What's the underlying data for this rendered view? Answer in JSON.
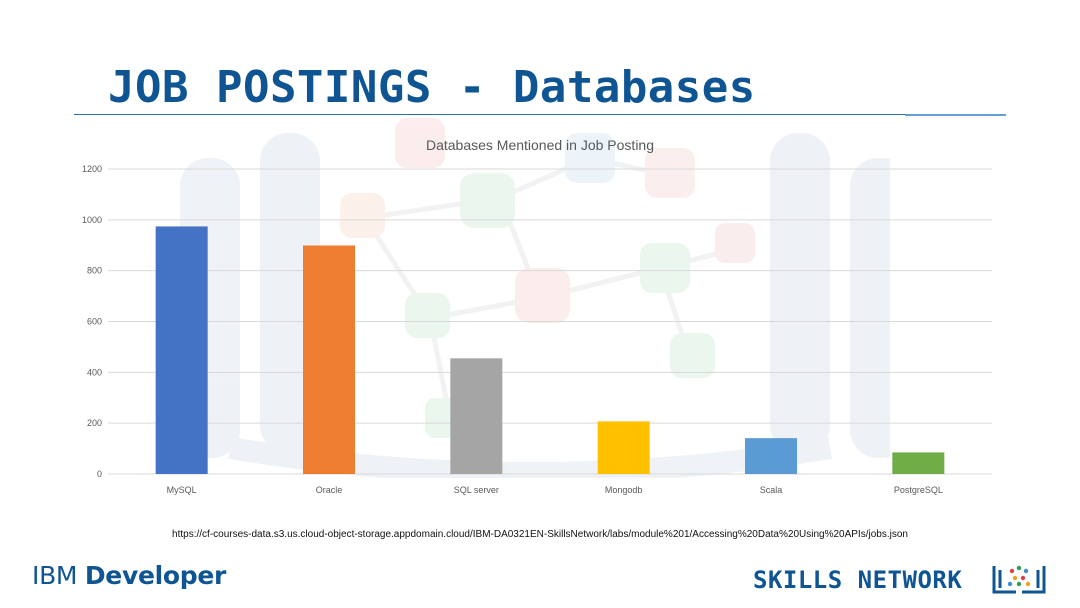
{
  "slide": {
    "title": "JOB POSTINGS - Databases",
    "source_url": "https://cf-courses-data.s3.us.cloud-object-storage.appdomain.cloud/IBM-DA0321EN-SkillsNetwork/labs/module%201/Accessing%20Data%20Using%20APIs/jobs.json"
  },
  "branding": {
    "ibm_prefix": "IBM ",
    "ibm_suffix": "Developer",
    "skills_network": "SKILLS NETWORK"
  },
  "colors": {
    "title": "#0f5493",
    "rule": "#2f6da6",
    "gridline": "#d9d9d9",
    "axis_text": "#595959"
  },
  "chart_data": {
    "type": "bar",
    "title": "Databases Mentioned in Job Posting",
    "xlabel": "",
    "ylabel": "",
    "categories": [
      "MySQL",
      "Oracle",
      "SQL server",
      "Mongodb",
      "Scala",
      "PostgreSQL"
    ],
    "values": [
      974,
      899,
      455,
      207,
      141,
      85
    ],
    "bar_colors": [
      "#4472c4",
      "#ed7d31",
      "#a5a5a5",
      "#ffc000",
      "#5b9bd5",
      "#70ad47"
    ],
    "ylim": [
      0,
      1200
    ],
    "yticks": [
      0,
      200,
      400,
      600,
      800,
      1000,
      1200
    ],
    "grid": true,
    "legend": "none"
  }
}
